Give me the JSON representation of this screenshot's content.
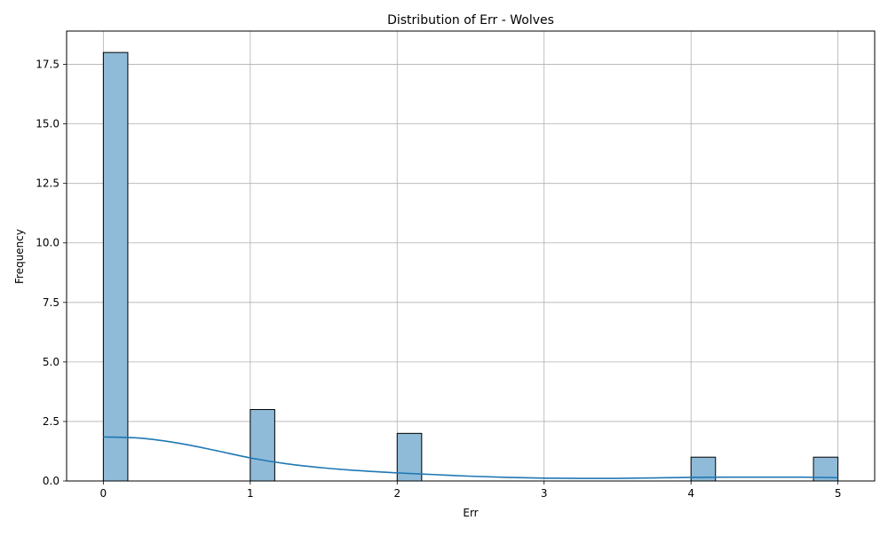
{
  "chart_data": {
    "type": "bar",
    "title": "Distribution of Err - Wolves",
    "xlabel": "Err",
    "ylabel": "Frequency",
    "xlim": [
      -0.25,
      5.25
    ],
    "ylim": [
      0,
      18.9
    ],
    "xticks": [
      0,
      1,
      2,
      3,
      4,
      5
    ],
    "xtick_labels": [
      "0",
      "1",
      "2",
      "3",
      "4",
      "5"
    ],
    "yticks": [
      0.0,
      2.5,
      5.0,
      7.5,
      10.0,
      12.5,
      15.0,
      17.5
    ],
    "ytick_labels": [
      "0.0",
      "2.5",
      "5.0",
      "7.5",
      "10.0",
      "12.5",
      "15.0",
      "17.5"
    ],
    "grid": true,
    "bins": [
      {
        "x0": 0.0,
        "x1": 0.1667,
        "count": 18
      },
      {
        "x0": 1.0,
        "x1": 1.1667,
        "count": 3
      },
      {
        "x0": 2.0,
        "x1": 2.1667,
        "count": 2
      },
      {
        "x0": 4.0,
        "x1": 4.1667,
        "count": 1
      },
      {
        "x0": 4.8333,
        "x1": 5.0,
        "count": 1
      }
    ],
    "kde": {
      "x": [
        0.0,
        0.25,
        0.5,
        0.75,
        1.0,
        1.25,
        1.5,
        1.75,
        2.0,
        2.25,
        2.5,
        2.75,
        3.0,
        3.25,
        3.5,
        3.75,
        4.0,
        4.25,
        4.5,
        4.75,
        5.0
      ],
      "y": [
        1.85,
        1.8,
        1.6,
        1.3,
        0.97,
        0.72,
        0.55,
        0.43,
        0.34,
        0.27,
        0.2,
        0.15,
        0.12,
        0.11,
        0.11,
        0.13,
        0.15,
        0.16,
        0.16,
        0.16,
        0.14
      ]
    },
    "colors": {
      "bar_fill": "#8fbbd9",
      "bar_edge": "#000000",
      "kde_line": "#1f77b4",
      "grid": "#b0b0b0"
    }
  }
}
